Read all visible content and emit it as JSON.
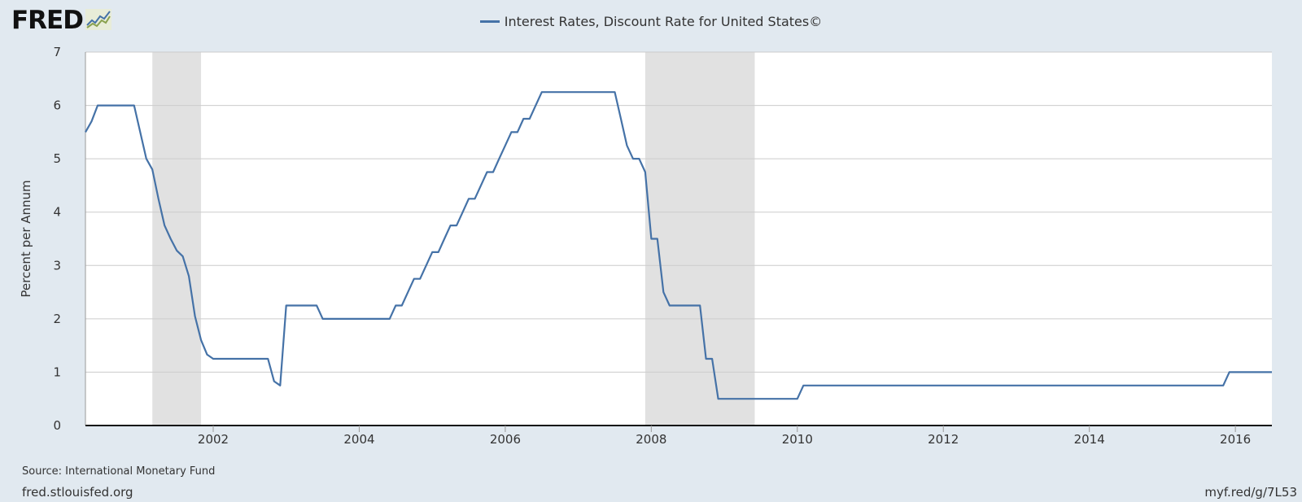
{
  "logo": {
    "text": "FRED",
    "icon": "fred-chart-icon"
  },
  "colors": {
    "line": "#4572a7",
    "recession": "#e1e1e1",
    "grid": "#cccccc",
    "plot_bg": "#ffffff",
    "page_bg": "#e1e9f0"
  },
  "footer": {
    "source": "Source: International Monetary Fund",
    "site": "fred.stlouisfed.org",
    "shortlink": "myf.red/g/7L53"
  },
  "chart_data": {
    "type": "line",
    "title": "",
    "xlabel": "",
    "ylabel": "Percent per Annum",
    "xlim": [
      "2000-04-01",
      "2016-07-01"
    ],
    "ylim": [
      0,
      7
    ],
    "grid": true,
    "legend_position": "top-center",
    "y_ticks": [
      "0",
      "1",
      "2",
      "3",
      "4",
      "5",
      "6",
      "7"
    ],
    "x_ticks": [
      "2002",
      "2004",
      "2006",
      "2008",
      "2010",
      "2012",
      "2014",
      "2016"
    ],
    "recessions": [
      {
        "start": "2001-03-01",
        "end": "2001-11-01"
      },
      {
        "start": "2007-12-01",
        "end": "2009-06-01"
      }
    ],
    "series": [
      {
        "name": "Interest Rates, Discount Rate for United States©",
        "points": [
          [
            "2000-04-01",
            5.5
          ],
          [
            "2000-05-01",
            5.7
          ],
          [
            "2000-06-01",
            6.0
          ],
          [
            "2000-07-01",
            6.0
          ],
          [
            "2000-08-01",
            6.0
          ],
          [
            "2000-09-01",
            6.0
          ],
          [
            "2000-10-01",
            6.0
          ],
          [
            "2000-11-01",
            6.0
          ],
          [
            "2000-12-01",
            6.0
          ],
          [
            "2001-01-01",
            5.5
          ],
          [
            "2001-02-01",
            5.0
          ],
          [
            "2001-03-01",
            4.8
          ],
          [
            "2001-04-01",
            4.25
          ],
          [
            "2001-05-01",
            3.75
          ],
          [
            "2001-06-01",
            3.5
          ],
          [
            "2001-07-01",
            3.28
          ],
          [
            "2001-08-01",
            3.17
          ],
          [
            "2001-09-01",
            2.8
          ],
          [
            "2001-10-01",
            2.05
          ],
          [
            "2001-11-01",
            1.6
          ],
          [
            "2001-12-01",
            1.33
          ],
          [
            "2002-01-01",
            1.25
          ],
          [
            "2002-02-01",
            1.25
          ],
          [
            "2002-03-01",
            1.25
          ],
          [
            "2002-04-01",
            1.25
          ],
          [
            "2002-05-01",
            1.25
          ],
          [
            "2002-06-01",
            1.25
          ],
          [
            "2002-07-01",
            1.25
          ],
          [
            "2002-08-01",
            1.25
          ],
          [
            "2002-09-01",
            1.25
          ],
          [
            "2002-10-01",
            1.25
          ],
          [
            "2002-11-01",
            0.83
          ],
          [
            "2002-12-01",
            0.75
          ],
          [
            "2003-01-01",
            2.25
          ],
          [
            "2003-02-01",
            2.25
          ],
          [
            "2003-03-01",
            2.25
          ],
          [
            "2003-04-01",
            2.25
          ],
          [
            "2003-05-01",
            2.25
          ],
          [
            "2003-06-01",
            2.25
          ],
          [
            "2003-07-01",
            2.0
          ],
          [
            "2003-08-01",
            2.0
          ],
          [
            "2003-09-01",
            2.0
          ],
          [
            "2003-10-01",
            2.0
          ],
          [
            "2003-11-01",
            2.0
          ],
          [
            "2003-12-01",
            2.0
          ],
          [
            "2004-01-01",
            2.0
          ],
          [
            "2004-02-01",
            2.0
          ],
          [
            "2004-03-01",
            2.0
          ],
          [
            "2004-04-01",
            2.0
          ],
          [
            "2004-05-01",
            2.0
          ],
          [
            "2004-06-01",
            2.0
          ],
          [
            "2004-07-01",
            2.25
          ],
          [
            "2004-08-01",
            2.25
          ],
          [
            "2004-09-01",
            2.5
          ],
          [
            "2004-10-01",
            2.75
          ],
          [
            "2004-11-01",
            2.75
          ],
          [
            "2004-12-01",
            3.0
          ],
          [
            "2005-01-01",
            3.25
          ],
          [
            "2005-02-01",
            3.25
          ],
          [
            "2005-03-01",
            3.5
          ],
          [
            "2005-04-01",
            3.75
          ],
          [
            "2005-05-01",
            3.75
          ],
          [
            "2005-06-01",
            4.0
          ],
          [
            "2005-07-01",
            4.25
          ],
          [
            "2005-08-01",
            4.25
          ],
          [
            "2005-09-01",
            4.5
          ],
          [
            "2005-10-01",
            4.75
          ],
          [
            "2005-11-01",
            4.75
          ],
          [
            "2005-12-01",
            5.0
          ],
          [
            "2006-01-01",
            5.25
          ],
          [
            "2006-02-01",
            5.5
          ],
          [
            "2006-03-01",
            5.5
          ],
          [
            "2006-04-01",
            5.75
          ],
          [
            "2006-05-01",
            5.75
          ],
          [
            "2006-06-01",
            6.0
          ],
          [
            "2006-07-01",
            6.25
          ],
          [
            "2006-08-01",
            6.25
          ],
          [
            "2006-09-01",
            6.25
          ],
          [
            "2006-10-01",
            6.25
          ],
          [
            "2006-11-01",
            6.25
          ],
          [
            "2006-12-01",
            6.25
          ],
          [
            "2007-01-01",
            6.25
          ],
          [
            "2007-02-01",
            6.25
          ],
          [
            "2007-03-01",
            6.25
          ],
          [
            "2007-04-01",
            6.25
          ],
          [
            "2007-05-01",
            6.25
          ],
          [
            "2007-06-01",
            6.25
          ],
          [
            "2007-07-01",
            6.25
          ],
          [
            "2007-08-01",
            5.75
          ],
          [
            "2007-09-01",
            5.25
          ],
          [
            "2007-10-01",
            5.0
          ],
          [
            "2007-11-01",
            5.0
          ],
          [
            "2007-12-01",
            4.75
          ],
          [
            "2008-01-01",
            3.5
          ],
          [
            "2008-02-01",
            3.5
          ],
          [
            "2008-03-01",
            2.5
          ],
          [
            "2008-04-01",
            2.25
          ],
          [
            "2008-05-01",
            2.25
          ],
          [
            "2008-06-01",
            2.25
          ],
          [
            "2008-07-01",
            2.25
          ],
          [
            "2008-08-01",
            2.25
          ],
          [
            "2008-09-01",
            2.25
          ],
          [
            "2008-10-01",
            1.25
          ],
          [
            "2008-11-01",
            1.25
          ],
          [
            "2008-12-01",
            0.5
          ],
          [
            "2009-01-01",
            0.5
          ],
          [
            "2009-02-01",
            0.5
          ],
          [
            "2009-03-01",
            0.5
          ],
          [
            "2009-04-01",
            0.5
          ],
          [
            "2009-05-01",
            0.5
          ],
          [
            "2009-06-01",
            0.5
          ],
          [
            "2009-07-01",
            0.5
          ],
          [
            "2009-08-01",
            0.5
          ],
          [
            "2009-09-01",
            0.5
          ],
          [
            "2009-10-01",
            0.5
          ],
          [
            "2009-11-01",
            0.5
          ],
          [
            "2009-12-01",
            0.5
          ],
          [
            "2010-01-01",
            0.5
          ],
          [
            "2010-02-01",
            0.75
          ],
          [
            "2010-03-01",
            0.75
          ],
          [
            "2011-01-01",
            0.75
          ],
          [
            "2012-01-01",
            0.75
          ],
          [
            "2013-01-01",
            0.75
          ],
          [
            "2014-01-01",
            0.75
          ],
          [
            "2015-01-01",
            0.75
          ],
          [
            "2015-11-01",
            0.75
          ],
          [
            "2015-12-01",
            1.0
          ],
          [
            "2016-01-01",
            1.0
          ],
          [
            "2016-07-01",
            1.0
          ]
        ]
      }
    ]
  }
}
